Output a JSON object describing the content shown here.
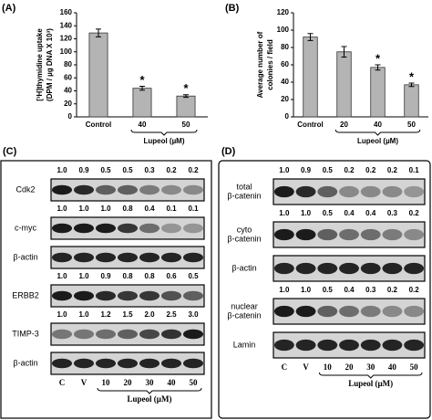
{
  "chart_data": [
    {
      "type": "bar",
      "panel": "(A)",
      "ylabel": [
        "[³H]thymidine uptake",
        "(DPM / µg DNA X 10³)"
      ],
      "categories": [
        "Control",
        "40",
        "50"
      ],
      "values": [
        129,
        44,
        32
      ],
      "errors": [
        6,
        3,
        2
      ],
      "significant": [
        false,
        true,
        true
      ],
      "marker": "*",
      "group_label": "Lupeol (µM)",
      "ylim": [
        0,
        160
      ],
      "yticks": [
        0,
        20,
        40,
        60,
        80,
        100,
        120,
        140,
        160
      ],
      "color": "#b4b4b4"
    },
    {
      "type": "bar",
      "panel": "(B)",
      "ylabel": [
        "Average number of",
        "colonies / field"
      ],
      "categories": [
        "Control",
        "20",
        "40",
        "50"
      ],
      "values": [
        92,
        75,
        57,
        37
      ],
      "errors": [
        4,
        6,
        3,
        2
      ],
      "significant": [
        false,
        false,
        true,
        true
      ],
      "marker": "*",
      "group_label": "Lupeol (µM)",
      "ylim": [
        0,
        120
      ],
      "yticks": [
        0,
        20,
        40,
        60,
        80,
        100,
        120
      ],
      "color": "#b4b4b4"
    }
  ],
  "blots": {
    "C": {
      "panel": "(C)",
      "lanes": [
        "C",
        "V",
        "10",
        "20",
        "30",
        "40",
        "50"
      ],
      "group_label": "Lupeol (µM)",
      "rows": [
        {
          "name": [
            "Cdk2"
          ],
          "ratios": [
            "1.0",
            "0.9",
            "0.5",
            "0.5",
            "0.3",
            "0.2",
            "0.2"
          ]
        },
        {
          "name": [
            "c-myc"
          ],
          "ratios": [
            "1.0",
            "1.0",
            "1.0",
            "0.8",
            "0.4",
            "0.1",
            "0.1"
          ]
        },
        {
          "name": [
            "β-actin"
          ]
        },
        {
          "name": [
            "ERBB2"
          ],
          "ratios": [
            "1.0",
            "1.0",
            "0.9",
            "0.8",
            "0.8",
            "0.6",
            "0.5"
          ]
        },
        {
          "name": [
            "TIMP-3"
          ],
          "ratios": [
            "1.0",
            "1.0",
            "1.2",
            "1.5",
            "2.0",
            "2.5",
            "3.0"
          ]
        },
        {
          "name": [
            "β-actin"
          ]
        }
      ]
    },
    "D": {
      "panel": "(D)",
      "lanes": [
        "C",
        "V",
        "10",
        "20",
        "30",
        "40",
        "50"
      ],
      "group_label": "Lupeol (µM)",
      "rows": [
        {
          "name": [
            "total",
            "β-catenin"
          ],
          "ratios": [
            "1.0",
            "0.9",
            "0.5",
            "0.2",
            "0.2",
            "0.2",
            "0.1"
          ]
        },
        {
          "name": [
            "cyto",
            "β-catenin"
          ],
          "ratios": [
            "1.0",
            "1.0",
            "0.5",
            "0.4",
            "0.4",
            "0.3",
            "0.2"
          ]
        },
        {
          "name": [
            "β-actin"
          ]
        },
        {
          "name": [
            "nuclear",
            "β-catenin"
          ],
          "ratios": [
            "1.0",
            "1.0",
            "0.5",
            "0.4",
            "0.3",
            "0.2",
            "0.2"
          ]
        },
        {
          "name": [
            "Lamin"
          ]
        }
      ]
    }
  }
}
